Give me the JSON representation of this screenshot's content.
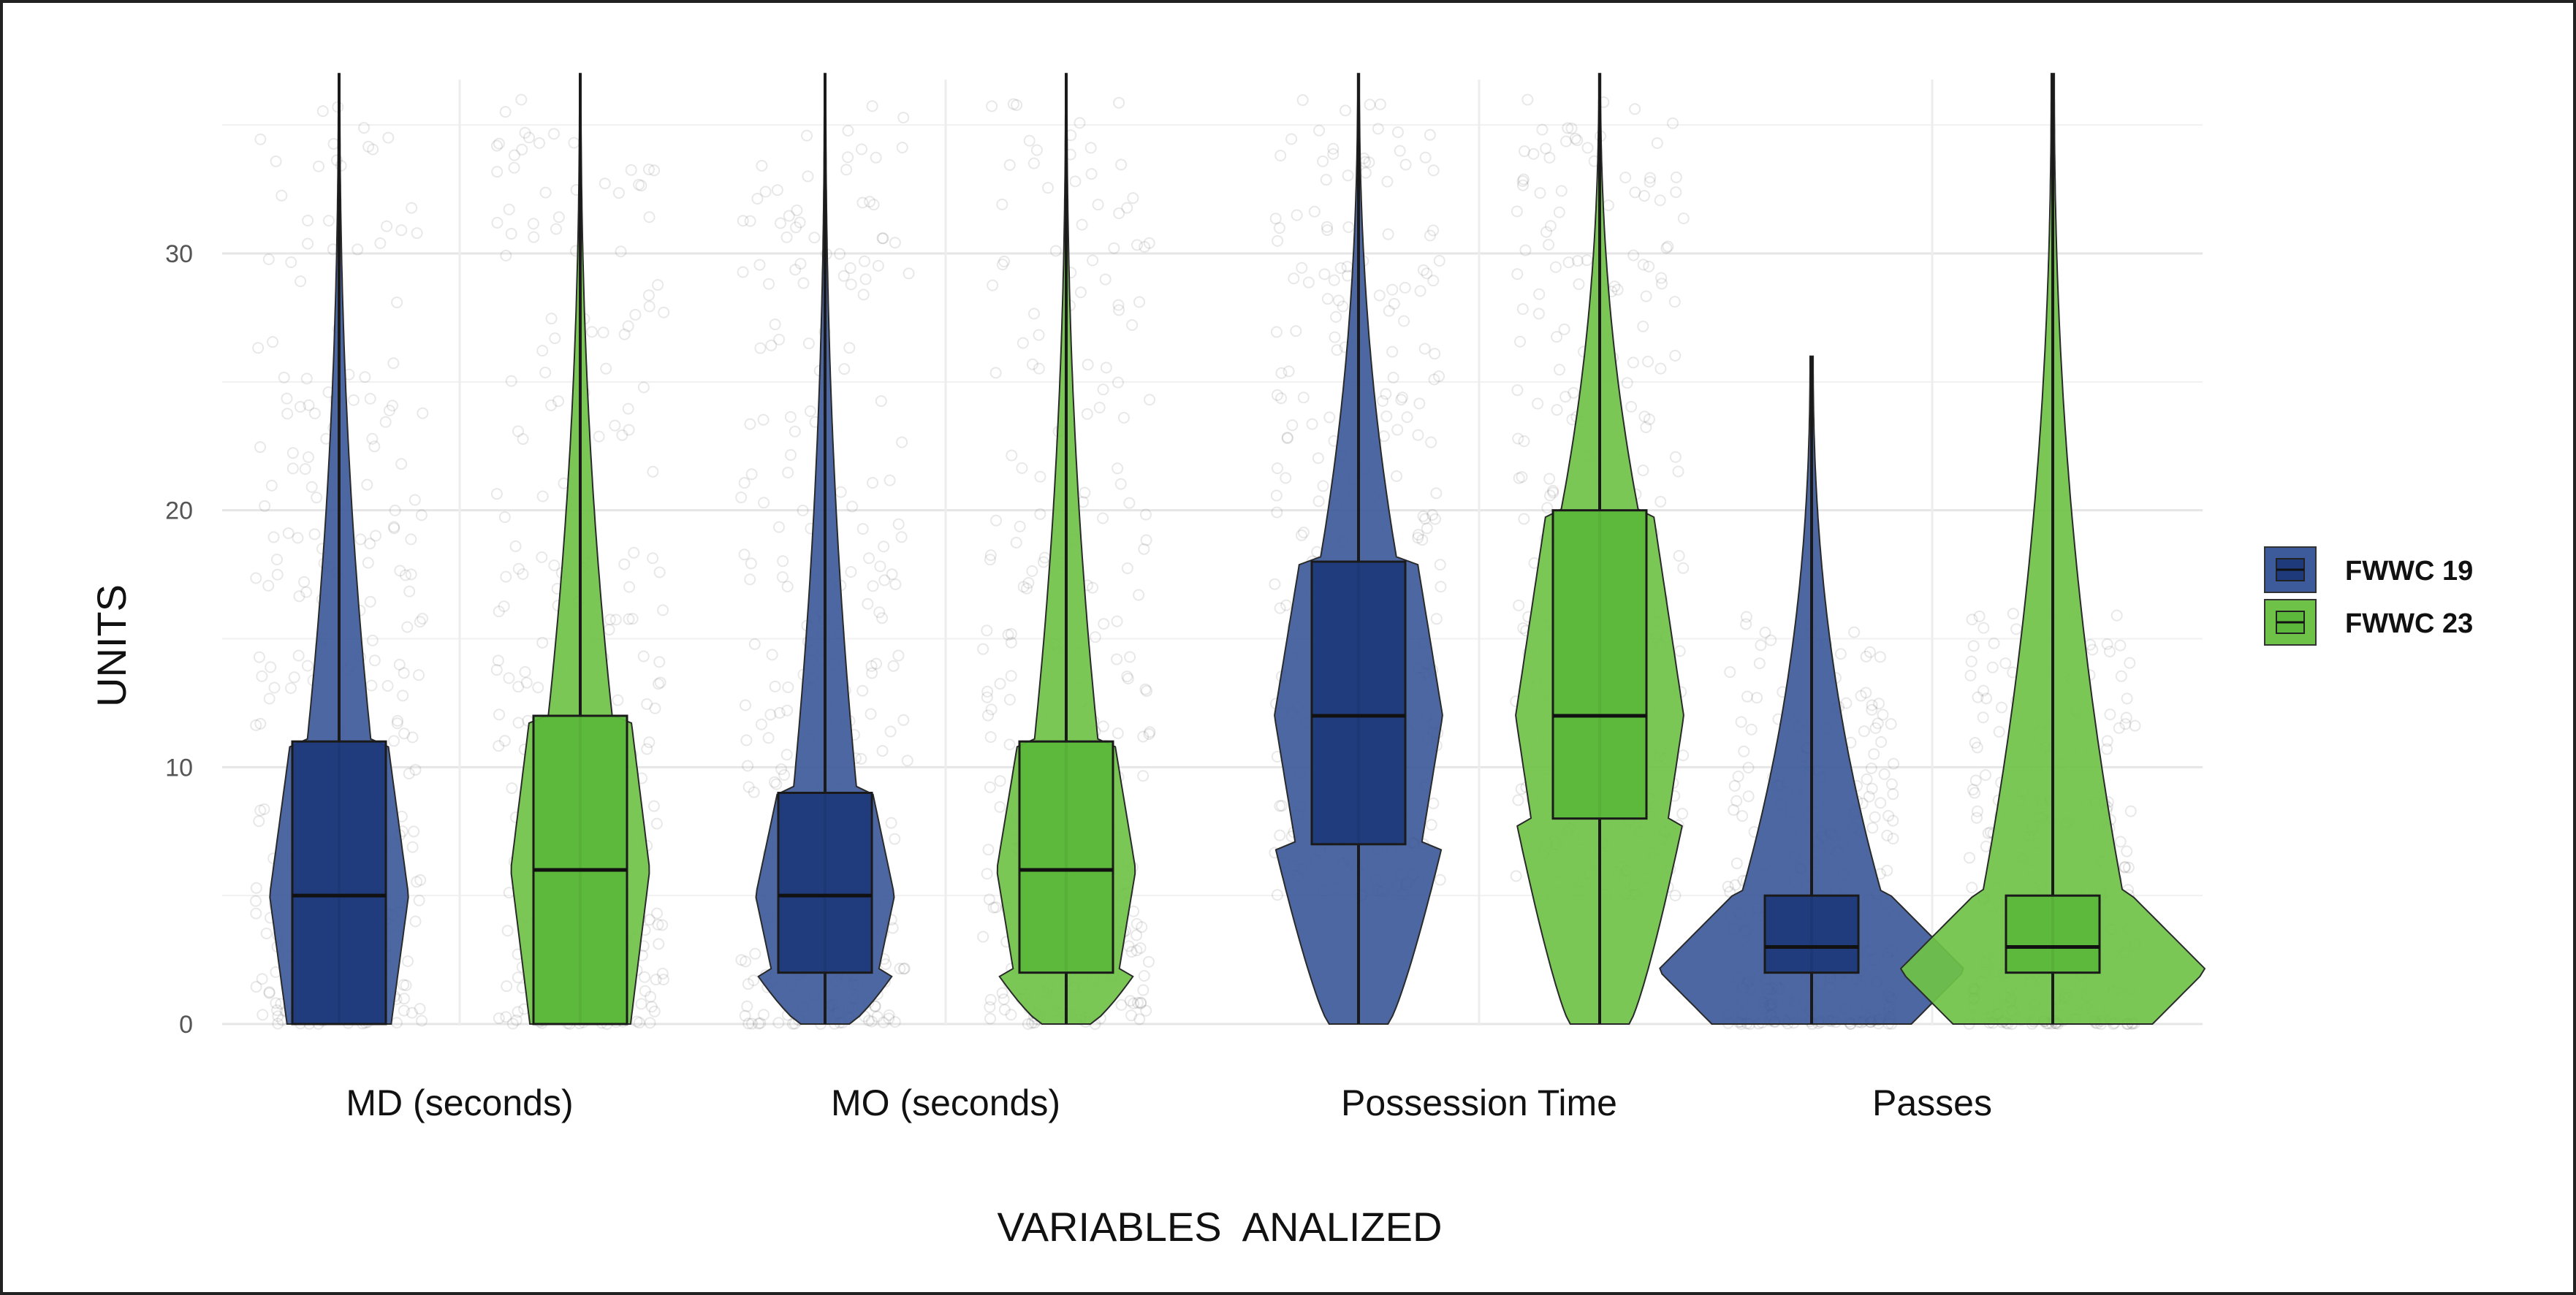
{
  "chart_data": {
    "type": "violin-box",
    "title": "",
    "xlabel": "VARIABLES  ANALIZED",
    "ylabel": "UNITS",
    "ylim": [
      0,
      37
    ],
    "yticks": [
      0,
      10,
      20,
      30
    ],
    "grid": true,
    "legend_position": "right",
    "categories": [
      "MD (seconds)",
      "MO (seconds)",
      "Possession Time",
      "Passes"
    ],
    "series": [
      {
        "name": "FWWC 19",
        "color": "#1f3a7a",
        "violin_color": "#3d5a9a",
        "groups": [
          {
            "category": "MD (seconds)",
            "q1": 0,
            "median": 5,
            "q3": 11,
            "min": 0,
            "max": 37
          },
          {
            "category": "MO (seconds)",
            "q1": 2,
            "median": 5,
            "q3": 9,
            "min": 0,
            "max": 37
          },
          {
            "category": "Possession Time",
            "q1": 7,
            "median": 12,
            "q3": 18,
            "min": 0,
            "max": 37
          },
          {
            "category": "Passes",
            "q1": 2,
            "median": 3,
            "q3": 5,
            "min": 0,
            "max": 26
          }
        ]
      },
      {
        "name": "FWWC 23",
        "color": "#5cb83a",
        "violin_color": "#6fc248",
        "groups": [
          {
            "category": "MD (seconds)",
            "q1": 0,
            "median": 6,
            "q3": 12,
            "min": 0,
            "max": 37
          },
          {
            "category": "MO (seconds)",
            "q1": 2,
            "median": 6,
            "q3": 11,
            "min": 0,
            "max": 37
          },
          {
            "category": "Possession Time",
            "q1": 8,
            "median": 12,
            "q3": 20,
            "min": 0,
            "max": 37
          },
          {
            "category": "Passes",
            "q1": 2,
            "median": 3,
            "q3": 5,
            "min": 0,
            "max": 37
          }
        ]
      }
    ]
  }
}
